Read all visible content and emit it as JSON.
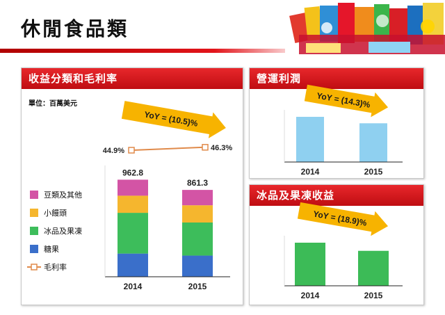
{
  "page": {
    "title": "休閒食品類"
  },
  "panels": {
    "revenue": {
      "title": "收益分類和毛利率",
      "unit": "單位：百萬美元"
    },
    "operating_profit": {
      "title": "營運利潤"
    },
    "ice_jelly": {
      "title": "冰品及果凍收益"
    }
  },
  "colors": {
    "accent": "#e2141a",
    "beans": "#d354a5",
    "buns": "#f5b62e",
    "ice": "#3dbd5b",
    "candy": "#3a6fca",
    "margin_line": "#e08a4a",
    "profit_bar": "#8fd0f0",
    "ice_bar": "#3cbb57",
    "yoy_arrow": "#f7b300"
  },
  "chart_data": [
    {
      "type": "bar",
      "stacked": true,
      "categories": [
        "2014",
        "2015"
      ],
      "series": [
        {
          "name": "糖果",
          "values": [
            230,
            210
          ]
        },
        {
          "name": "冰品及果凍",
          "values": [
            404,
            328
          ]
        },
        {
          "name": "小饅頭",
          "values": [
            170,
            171
          ]
        },
        {
          "name": "豆類及其他",
          "values": [
            158.8,
            152.3
          ]
        }
      ],
      "totals": [
        "962.8",
        "861.3"
      ],
      "line": {
        "name": "毛利率",
        "values": [
          44.9,
          46.3
        ],
        "labels": [
          "44.9%",
          "46.3%"
        ]
      },
      "yoy_label": "YoY = (10.5)%",
      "ylim": [
        0,
        1000
      ]
    },
    {
      "type": "bar",
      "categories": [
        "2014",
        "2015"
      ],
      "values": [
        100,
        85.7
      ],
      "yoy_label": "YoY = (14.3)%"
    },
    {
      "type": "bar",
      "categories": [
        "2014",
        "2015"
      ],
      "values": [
        100,
        81.1
      ],
      "yoy_label": "YoY = (18.9)%"
    }
  ]
}
